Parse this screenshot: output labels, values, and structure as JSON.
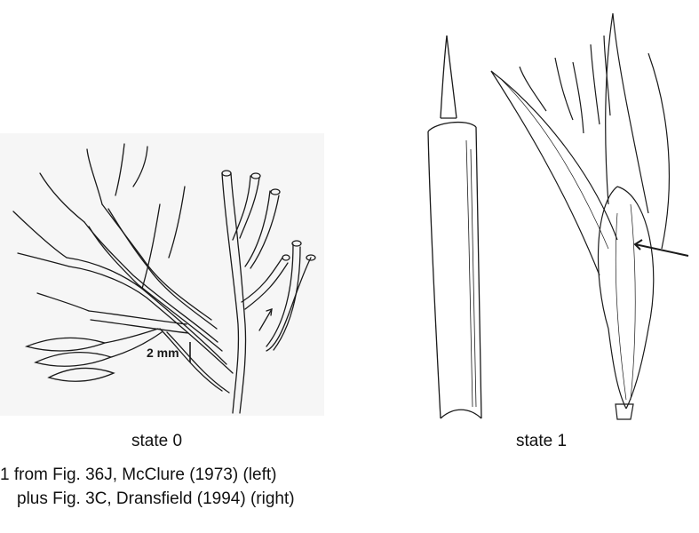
{
  "scale_label": "2 mm",
  "labels": {
    "state0": "state 0",
    "state1": "state 1"
  },
  "caption": {
    "line1": "1 from Fig. 36J, McClure (1973) (left)",
    "line2": "plus Fig. 3C, Dransfield (1994) (right)"
  },
  "colors": {
    "ink": "#1a1a1a",
    "panel_bg": "#f6f6f6",
    "page_bg": "#ffffff"
  }
}
